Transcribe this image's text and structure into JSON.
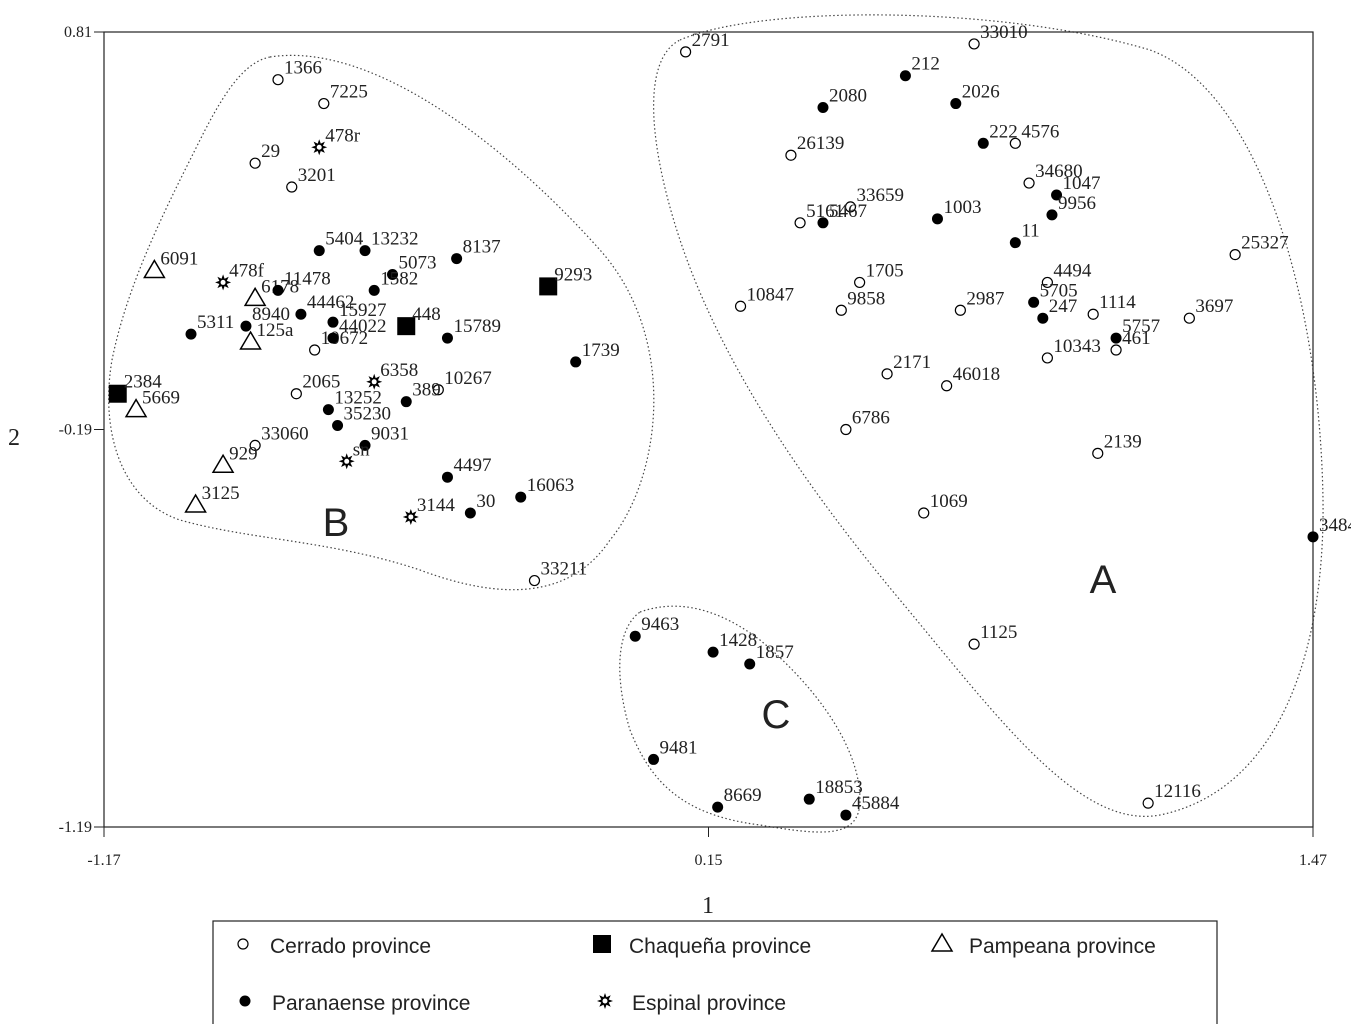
{
  "chart_data": {
    "type": "scatter",
    "xlabel": "1",
    "ylabel": "2",
    "xlim": [
      -1.17,
      1.47
    ],
    "ylim": [
      -1.19,
      0.81
    ],
    "xticks": [
      -1.17,
      0.15,
      1.47
    ],
    "yticks": [
      0.81,
      -0.19,
      -1.19
    ],
    "cluster_labels": [
      "A",
      "B",
      "C"
    ],
    "series": [
      {
        "name": "Cerrado province",
        "marker": "circle-open",
        "color": "#000000",
        "labels": [
          "2791",
          "33010",
          "26139",
          "4576",
          "34680",
          "33659",
          "5161",
          "25327",
          "4494",
          "1705",
          "10847",
          "9858",
          "2987",
          "1114",
          "3697",
          "461",
          "10343",
          "2171",
          "46018",
          "6786",
          "2139",
          "1069",
          "1125",
          "12116",
          "1366",
          "7225",
          "29",
          "3201",
          "10672",
          "10267",
          "2065",
          "33060",
          "33211"
        ],
        "x": [
          0.1,
          0.73,
          0.33,
          0.82,
          0.85,
          0.46,
          0.35,
          1.3,
          0.89,
          0.48,
          0.22,
          0.44,
          0.7,
          0.99,
          1.2,
          1.04,
          0.89,
          0.54,
          0.67,
          0.45,
          1.0,
          0.62,
          0.73,
          1.11,
          -0.79,
          -0.69,
          -0.84,
          -0.76,
          -0.71,
          -0.44,
          -0.75,
          -0.84,
          -0.23
        ],
        "y": [
          0.76,
          0.78,
          0.5,
          0.53,
          0.43,
          0.37,
          0.33,
          0.25,
          0.18,
          0.18,
          0.12,
          0.11,
          0.11,
          0.1,
          0.09,
          0.01,
          -0.01,
          -0.05,
          -0.08,
          -0.19,
          -0.25,
          -0.4,
          -0.73,
          -1.13,
          0.69,
          0.63,
          0.48,
          0.42,
          0.01,
          -0.09,
          -0.1,
          -0.23,
          -0.57
        ]
      },
      {
        "name": "Chaqueña province",
        "marker": "square",
        "color": "#000000",
        "labels": [
          "9293",
          "448",
          "2384"
        ],
        "x": [
          -0.2,
          -0.51,
          -1.14
        ],
        "y": [
          0.17,
          0.07,
          -0.1
        ]
      },
      {
        "name": "Pampeana province",
        "marker": "triangle-open",
        "color": "#000000",
        "labels": [
          "6091",
          "6178",
          "125a",
          "5669",
          "929",
          "3125"
        ],
        "x": [
          -1.06,
          -0.84,
          -0.85,
          -1.1,
          -0.91,
          -0.97
        ],
        "y": [
          0.21,
          0.14,
          0.03,
          -0.14,
          -0.28,
          -0.38
        ]
      },
      {
        "name": "Paranaense province",
        "marker": "circle",
        "color": "#000000",
        "labels": [
          "212",
          "2080",
          "2026",
          "222",
          "1003",
          "1047",
          "9956",
          "11",
          "5467",
          "5705",
          "247",
          "5757",
          "3484",
          "9463",
          "1428",
          "1857",
          "9481",
          "8669",
          "18853",
          "45884",
          "5404",
          "13232",
          "8137",
          "5073",
          "11478",
          "1582",
          "44462",
          "15927",
          "8940",
          "5311",
          "44022",
          "15789",
          "1739",
          "13252",
          "389",
          "35230",
          "9031",
          "4497",
          "30",
          "16063"
        ],
        "x": [
          0.58,
          0.4,
          0.69,
          0.75,
          0.65,
          0.91,
          0.9,
          0.82,
          0.4,
          0.86,
          0.88,
          1.04,
          1.47,
          -0.01,
          0.16,
          0.24,
          0.03,
          0.17,
          0.37,
          0.45,
          -0.7,
          -0.6,
          -0.4,
          -0.54,
          -0.79,
          -0.58,
          -0.74,
          -0.67,
          -0.86,
          -0.98,
          -0.67,
          -0.42,
          -0.14,
          -0.68,
          -0.51,
          -0.66,
          -0.6,
          -0.42,
          -0.37,
          -0.26
        ],
        "y": [
          0.7,
          0.62,
          0.63,
          0.53,
          0.34,
          0.4,
          0.35,
          0.28,
          0.33,
          0.13,
          0.09,
          0.04,
          -0.46,
          -0.71,
          -0.75,
          -0.78,
          -1.02,
          -1.14,
          -1.12,
          -1.16,
          0.26,
          0.26,
          0.24,
          0.2,
          0.16,
          0.16,
          0.1,
          0.08,
          0.07,
          0.05,
          0.04,
          0.04,
          -0.02,
          -0.14,
          -0.12,
          -0.18,
          -0.23,
          -0.31,
          -0.4,
          -0.36
        ]
      },
      {
        "name": "Espinal province",
        "marker": "star",
        "color": "#000000",
        "labels": [
          "478r",
          "478f",
          "6358",
          "sn",
          "3144"
        ],
        "x": [
          -0.7,
          -0.91,
          -0.58,
          -0.64,
          -0.5
        ],
        "y": [
          0.52,
          0.18,
          -0.07,
          -0.27,
          -0.41
        ]
      }
    ]
  }
}
